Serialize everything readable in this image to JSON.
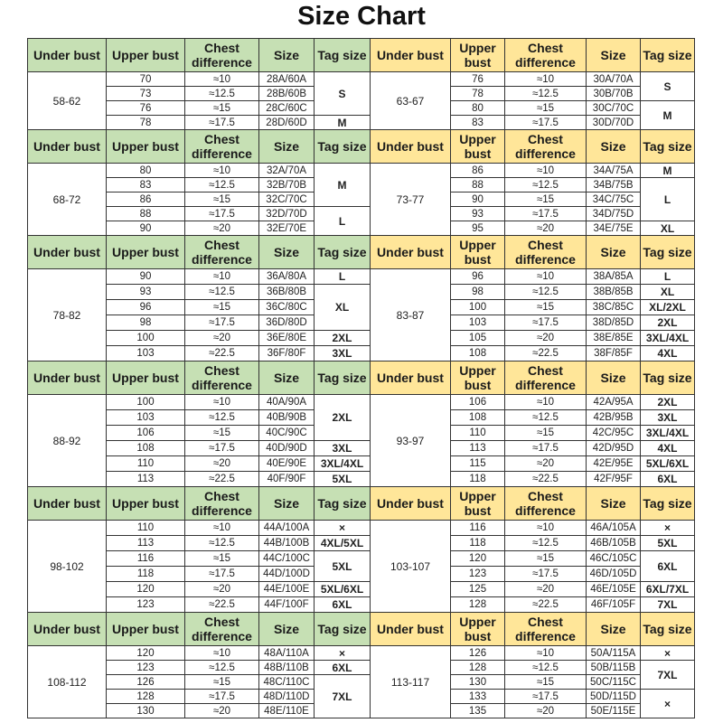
{
  "title": "Size Chart",
  "colors": {
    "left_header": "#c6e0b4",
    "right_header": "#ffe699",
    "border": "#333333"
  },
  "headers": {
    "left": [
      "Under bust",
      "Upper bust",
      "Chest difference",
      "Size",
      "Tag size"
    ],
    "right": [
      "Under bust",
      "Upper bust",
      "Chest difference",
      "Size",
      "Tag size"
    ]
  },
  "blocks": [
    {
      "left": {
        "under_bust": "58-62",
        "rows": [
          [
            "70",
            "≈10",
            "28A/60A"
          ],
          [
            "73",
            "≈12.5",
            "28B/60B"
          ],
          [
            "76",
            "≈15",
            "28C/60C"
          ],
          [
            "78",
            "≈17.5",
            "28D/60D"
          ]
        ],
        "tags": [
          [
            "S",
            3
          ],
          [
            "M",
            1
          ]
        ]
      },
      "right": {
        "under_bust": "63-67",
        "rows": [
          [
            "76",
            "≈10",
            "30A/70A"
          ],
          [
            "78",
            "≈12.5",
            "30B/70B"
          ],
          [
            "80",
            "≈15",
            "30C/70C"
          ],
          [
            "83",
            "≈17.5",
            "30D/70D"
          ]
        ],
        "tags": [
          [
            "S",
            2
          ],
          [
            "M",
            2
          ]
        ]
      }
    },
    {
      "left": {
        "under_bust": "68-72",
        "rows": [
          [
            "80",
            "≈10",
            "32A/70A"
          ],
          [
            "83",
            "≈12.5",
            "32B/70B"
          ],
          [
            "86",
            "≈15",
            "32C/70C"
          ],
          [
            "88",
            "≈17.5",
            "32D/70D"
          ],
          [
            "90",
            "≈20",
            "32E/70E"
          ]
        ],
        "tags": [
          [
            "M",
            3
          ],
          [
            "L",
            2
          ]
        ]
      },
      "right": {
        "under_bust": "73-77",
        "rows": [
          [
            "86",
            "≈10",
            "34A/75A"
          ],
          [
            "88",
            "≈12.5",
            "34B/75B"
          ],
          [
            "90",
            "≈15",
            "34C/75C"
          ],
          [
            "93",
            "≈17.5",
            "34D/75D"
          ],
          [
            "95",
            "≈20",
            "34E/75E"
          ]
        ],
        "tags": [
          [
            "M",
            1
          ],
          [
            "L",
            3
          ],
          [
            "XL",
            1
          ]
        ]
      }
    },
    {
      "left": {
        "under_bust": "78-82",
        "rows": [
          [
            "90",
            "≈10",
            "36A/80A"
          ],
          [
            "93",
            "≈12.5",
            "36B/80B"
          ],
          [
            "96",
            "≈15",
            "36C/80C"
          ],
          [
            "98",
            "≈17.5",
            "36D/80D"
          ],
          [
            "100",
            "≈20",
            "36E/80E"
          ],
          [
            "103",
            "≈22.5",
            "36F/80F"
          ]
        ],
        "tags": [
          [
            "L",
            1
          ],
          [
            "XL",
            3
          ],
          [
            "2XL",
            1
          ],
          [
            "3XL",
            1
          ]
        ]
      },
      "right": {
        "under_bust": "83-87",
        "rows": [
          [
            "96",
            "≈10",
            "38A/85A"
          ],
          [
            "98",
            "≈12.5",
            "38B/85B"
          ],
          [
            "100",
            "≈15",
            "38C/85C"
          ],
          [
            "103",
            "≈17.5",
            "38D/85D"
          ],
          [
            "105",
            "≈20",
            "38E/85E"
          ],
          [
            "108",
            "≈22.5",
            "38F/85F"
          ]
        ],
        "tags": [
          [
            "L",
            1
          ],
          [
            "XL",
            1
          ],
          [
            "XL/2XL",
            1
          ],
          [
            "2XL",
            1
          ],
          [
            "3XL/4XL",
            1
          ],
          [
            "4XL",
            1
          ]
        ]
      }
    },
    {
      "left": {
        "under_bust": "88-92",
        "rows": [
          [
            "100",
            "≈10",
            "40A/90A"
          ],
          [
            "103",
            "≈12.5",
            "40B/90B"
          ],
          [
            "106",
            "≈15",
            "40C/90C"
          ],
          [
            "108",
            "≈17.5",
            "40D/90D"
          ],
          [
            "110",
            "≈20",
            "40E/90E"
          ],
          [
            "113",
            "≈22.5",
            "40F/90F"
          ]
        ],
        "tags": [
          [
            "2XL",
            3
          ],
          [
            "3XL",
            1
          ],
          [
            "3XL/4XL",
            1
          ],
          [
            "5XL",
            1
          ]
        ]
      },
      "right": {
        "under_bust": "93-97",
        "rows": [
          [
            "106",
            "≈10",
            "42A/95A"
          ],
          [
            "108",
            "≈12.5",
            "42B/95B"
          ],
          [
            "110",
            "≈15",
            "42C/95C"
          ],
          [
            "113",
            "≈17.5",
            "42D/95D"
          ],
          [
            "115",
            "≈20",
            "42E/95E"
          ],
          [
            "118",
            "≈22.5",
            "42F/95F"
          ]
        ],
        "tags": [
          [
            "2XL",
            1
          ],
          [
            "3XL",
            1
          ],
          [
            "3XL/4XL",
            1
          ],
          [
            "4XL",
            1
          ],
          [
            "5XL/6XL",
            1
          ],
          [
            "6XL",
            1
          ]
        ]
      }
    },
    {
      "left": {
        "under_bust": "98-102",
        "rows": [
          [
            "110",
            "≈10",
            "44A/100A"
          ],
          [
            "113",
            "≈12.5",
            "44B/100B"
          ],
          [
            "116",
            "≈15",
            "44C/100C"
          ],
          [
            "118",
            "≈17.5",
            "44D/100D"
          ],
          [
            "120",
            "≈20",
            "44E/100E"
          ],
          [
            "123",
            "≈22.5",
            "44F/100F"
          ]
        ],
        "tags": [
          [
            "×",
            1
          ],
          [
            "4XL/5XL",
            1
          ],
          [
            "5XL",
            2
          ],
          [
            "5XL/6XL",
            1
          ],
          [
            "6XL",
            1
          ]
        ]
      },
      "right": {
        "under_bust": "103-107",
        "rows": [
          [
            "116",
            "≈10",
            "46A/105A"
          ],
          [
            "118",
            "≈12.5",
            "46B/105B"
          ],
          [
            "120",
            "≈15",
            "46C/105C"
          ],
          [
            "123",
            "≈17.5",
            "46D/105D"
          ],
          [
            "125",
            "≈20",
            "46E/105E"
          ],
          [
            "128",
            "≈22.5",
            "46F/105F"
          ]
        ],
        "tags": [
          [
            "×",
            1
          ],
          [
            "5XL",
            1
          ],
          [
            "6XL",
            2
          ],
          [
            "6XL/7XL",
            1
          ],
          [
            "7XL",
            1
          ]
        ]
      }
    },
    {
      "left": {
        "under_bust": "108-112",
        "rows": [
          [
            "120",
            "≈10",
            "48A/110A"
          ],
          [
            "123",
            "≈12.5",
            "48B/110B"
          ],
          [
            "126",
            "≈15",
            "48C/110C"
          ],
          [
            "128",
            "≈17.5",
            "48D/110D"
          ],
          [
            "130",
            "≈20",
            "48E/110E"
          ]
        ],
        "tags": [
          [
            "×",
            1
          ],
          [
            "6XL",
            1
          ],
          [
            "7XL",
            3
          ]
        ]
      },
      "right": {
        "under_bust": "113-117",
        "rows": [
          [
            "126",
            "≈10",
            "50A/115A"
          ],
          [
            "128",
            "≈12.5",
            "50B/115B"
          ],
          [
            "130",
            "≈15",
            "50C/115C"
          ],
          [
            "133",
            "≈17.5",
            "50D/115D"
          ],
          [
            "135",
            "≈20",
            "50E/115E"
          ]
        ],
        "tags": [
          [
            "×",
            1
          ],
          [
            "7XL",
            2
          ],
          [
            "×",
            2
          ]
        ]
      }
    }
  ]
}
